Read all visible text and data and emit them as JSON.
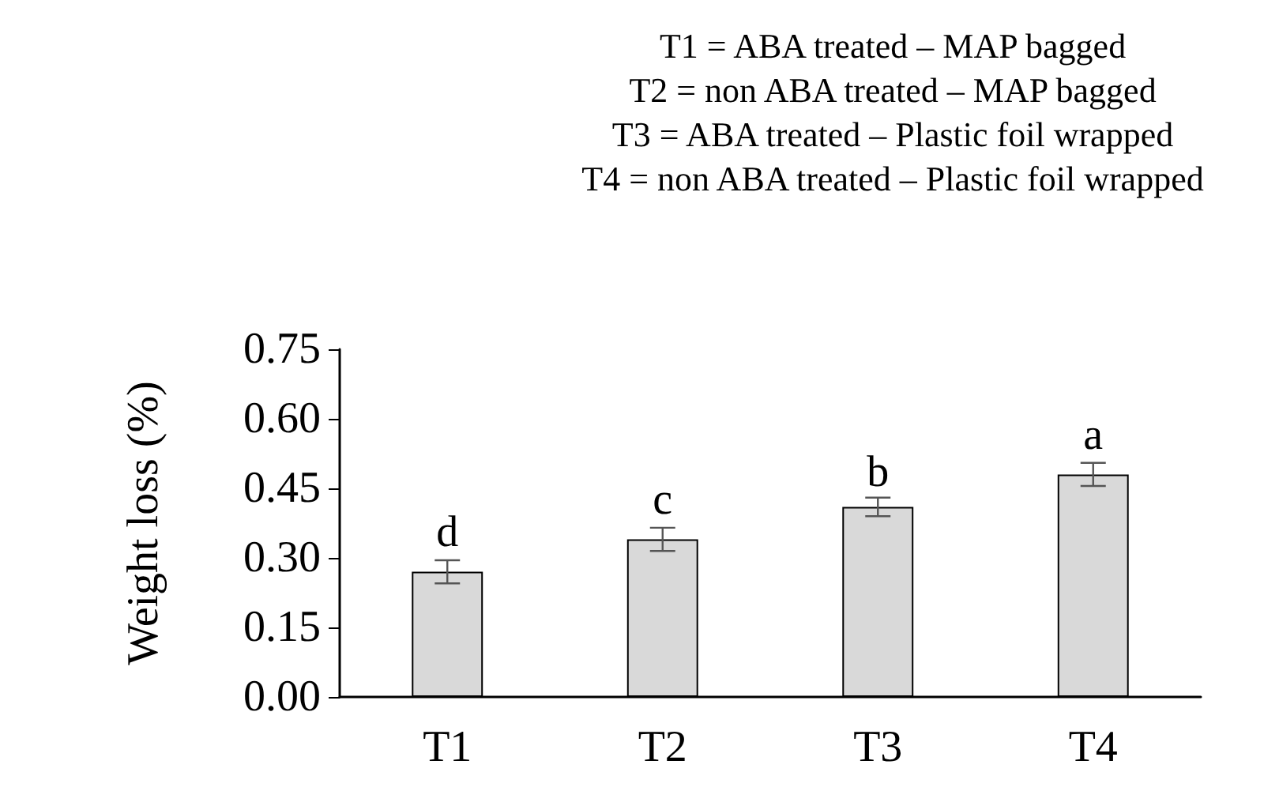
{
  "chart_data": {
    "type": "bar",
    "title": "T1 = ABA treated – MAP bagged\nT2 = non ABA treated – MAP bagged\nT3 = ABA treated – Plastic foil wrapped\nT4 = non ABA treated – Plastic foil wrapped",
    "ylabel": "Weight loss (%)",
    "categories": [
      "T1",
      "T2",
      "T3",
      "T4"
    ],
    "values": [
      0.27,
      0.34,
      0.41,
      0.48
    ],
    "errors": [
      0.025,
      0.025,
      0.02,
      0.025
    ],
    "color": "#d9d9d9",
    "ylim": [
      0,
      0.75
    ],
    "yticks": [
      {
        "value": 0,
        "label": "0.00"
      },
      {
        "value": 0.15,
        "label": "0.15"
      },
      {
        "value": 0.3,
        "label": "0.30"
      },
      {
        "value": 0.45,
        "label": "0.45"
      },
      {
        "value": 0.6,
        "label": "0.60"
      },
      {
        "value": 0.75,
        "label": "0.75"
      }
    ],
    "annotations": [
      {
        "text": "d",
        "x": "T1",
        "y": 0.3
      },
      {
        "text": "c",
        "x": "T2",
        "y": 0.37
      },
      {
        "text": "b",
        "x": "T3",
        "y": 0.43
      },
      {
        "text": "a",
        "x": "T4",
        "y": 0.51
      }
    ],
    "grid": false
  }
}
